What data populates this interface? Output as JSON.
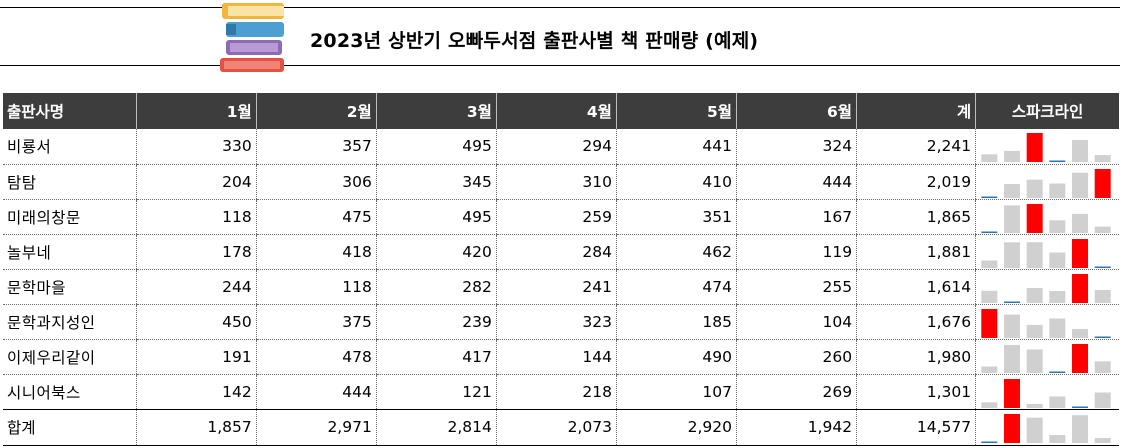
{
  "title": "2023년 상반기 오빠두서점 출판사별 책 판매량 (예제)",
  "colors": {
    "header_bg": "#3d3d3d",
    "spark_max": "#ff0000",
    "spark_min": "#2e75b6",
    "spark_bar": "#d0d0d0"
  },
  "icons": {
    "title_decoration": "books-stack-icon"
  },
  "table": {
    "headers": [
      "출판사명",
      "1월",
      "2월",
      "3월",
      "4월",
      "5월",
      "6월",
      "계",
      "스파크라인"
    ],
    "rows": [
      {
        "name": "비룡서",
        "values": [
          330,
          357,
          495,
          294,
          441,
          324
        ],
        "values_text": [
          "330",
          "357",
          "495",
          "294",
          "441",
          "324"
        ],
        "total": "2,241"
      },
      {
        "name": "탐탐",
        "values": [
          204,
          306,
          345,
          310,
          410,
          444
        ],
        "values_text": [
          "204",
          "306",
          "345",
          "310",
          "410",
          "444"
        ],
        "total": "2,019"
      },
      {
        "name": "미래의창문",
        "values": [
          118,
          475,
          495,
          259,
          351,
          167
        ],
        "values_text": [
          "118",
          "475",
          "495",
          "259",
          "351",
          "167"
        ],
        "total": "1,865"
      },
      {
        "name": "놀부네",
        "values": [
          178,
          418,
          420,
          284,
          462,
          119
        ],
        "values_text": [
          "178",
          "418",
          "420",
          "284",
          "462",
          "119"
        ],
        "total": "1,881"
      },
      {
        "name": "문학마을",
        "values": [
          244,
          118,
          282,
          241,
          474,
          255
        ],
        "values_text": [
          "244",
          "118",
          "282",
          "241",
          "474",
          "255"
        ],
        "total": "1,614"
      },
      {
        "name": "문학과지성인",
        "values": [
          450,
          375,
          239,
          323,
          185,
          104
        ],
        "values_text": [
          "450",
          "375",
          "239",
          "323",
          "185",
          "104"
        ],
        "total": "1,676"
      },
      {
        "name": "이제우리같이",
        "values": [
          191,
          478,
          417,
          144,
          490,
          260
        ],
        "values_text": [
          "191",
          "478",
          "417",
          "144",
          "490",
          "260"
        ],
        "total": "1,980"
      },
      {
        "name": "시니어북스",
        "values": [
          142,
          444,
          121,
          218,
          107,
          269
        ],
        "values_text": [
          "142",
          "444",
          "121",
          "218",
          "107",
          "269"
        ],
        "total": "1,301"
      }
    ],
    "footer": {
      "name": "합계",
      "values": [
        1857,
        2971,
        2814,
        2073,
        2920,
        1942
      ],
      "values_text": [
        "1,857",
        "2,971",
        "2,814",
        "2,073",
        "2,920",
        "1,942"
      ],
      "total": "14,577"
    }
  }
}
